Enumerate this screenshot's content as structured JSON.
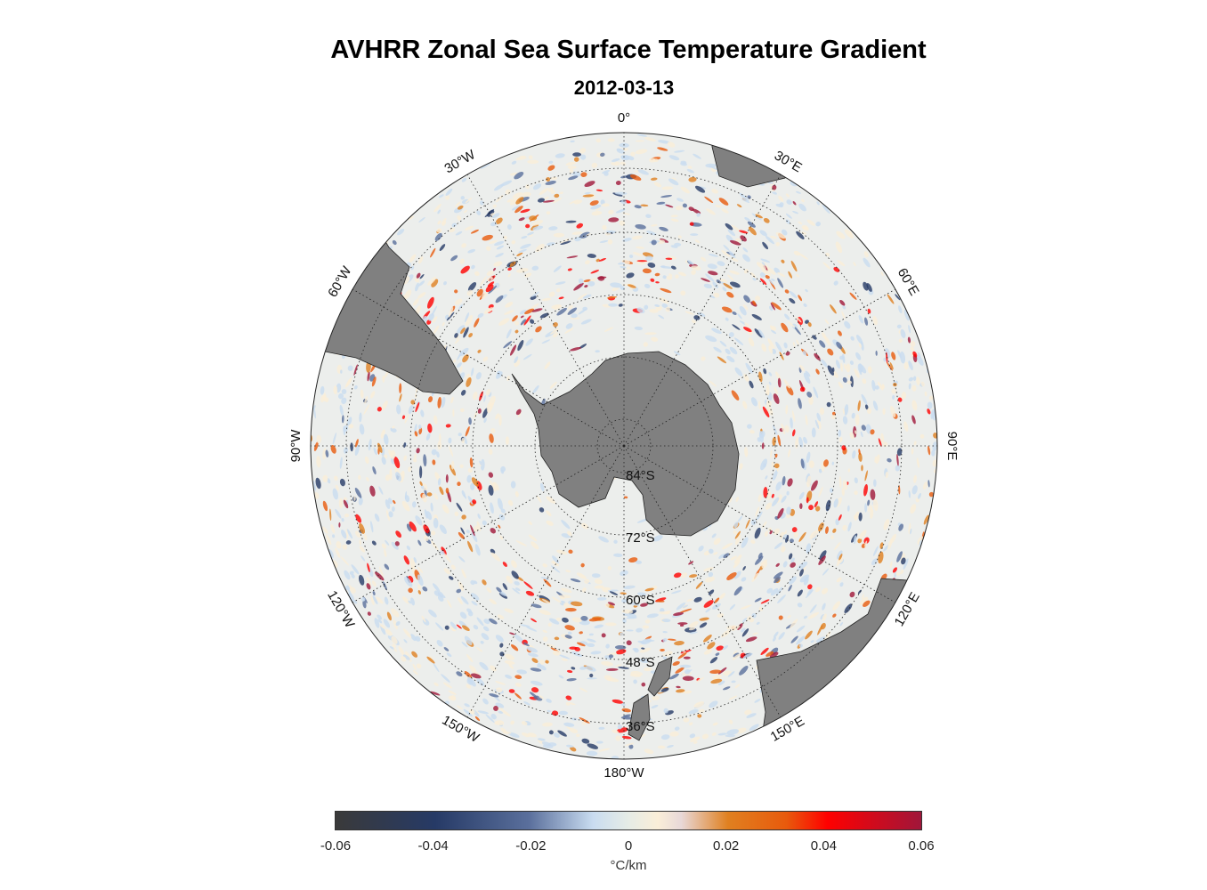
{
  "title": "AVHRR Zonal Sea Surface Temperature Gradient",
  "subtitle": "2012-03-13",
  "map": {
    "projection": "south polar stereographic",
    "longitude_labels": [
      "0°",
      "30°E",
      "60°E",
      "90°E",
      "120°E",
      "150°E",
      "180°W",
      "150°W",
      "120°W",
      "90°W",
      "60°W",
      "30°W"
    ],
    "latitude_labels": [
      "84°S",
      "72°S",
      "60°S",
      "48°S",
      "36°S"
    ],
    "colors": {
      "land": "#808080",
      "ocean_neutral": "#eceeec"
    }
  },
  "colorbar": {
    "ticks": [
      "-0.06",
      "-0.04",
      "-0.02",
      "0",
      "0.02",
      "0.04",
      "0.06"
    ],
    "unit": "°C/km",
    "range": [
      -0.06,
      0.06
    ]
  }
}
